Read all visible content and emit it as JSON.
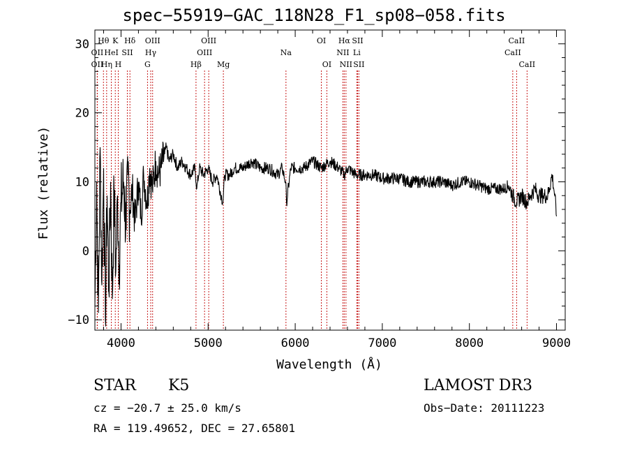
{
  "chart_data": {
    "type": "line",
    "title": "spec−55919−GAC_118N28_F1_sp08−058.fits",
    "xlabel": "Wavelength (Å)",
    "ylabel": "Flux (relative)",
    "xlim": [
      3700,
      9100
    ],
    "ylim": [
      -11.5,
      32
    ],
    "xticks": [
      4000,
      5000,
      6000,
      7000,
      8000,
      9000
    ],
    "xtick_labels": [
      "4000",
      "5000",
      "6000",
      "7000",
      "8000",
      "9000"
    ],
    "yticks": [
      -10,
      0,
      10,
      20,
      30
    ],
    "ytick_labels": [
      "−10",
      "0",
      "10",
      "20",
      "30"
    ],
    "grid": false,
    "series": [
      {
        "name": "spectrum",
        "x": [
          3700,
          3720,
          3740,
          3760,
          3780,
          3800,
          3820,
          3840,
          3860,
          3880,
          3900,
          3920,
          3940,
          3960,
          3980,
          4000,
          4030,
          4060,
          4080,
          4100,
          4130,
          4160,
          4200,
          4230,
          4260,
          4300,
          4330,
          4360,
          4400,
          4430,
          4460,
          4500,
          4520,
          4550,
          4600,
          4650,
          4700,
          4750,
          4800,
          4850,
          4870,
          4900,
          4950,
          5000,
          5050,
          5100,
          5150,
          5170,
          5190,
          5250,
          5300,
          5400,
          5500,
          5600,
          5700,
          5800,
          5850,
          5890,
          5900,
          5950,
          6000,
          6100,
          6200,
          6300,
          6400,
          6500,
          6563,
          6600,
          6700,
          6800,
          6900,
          7000,
          7100,
          7200,
          7300,
          7400,
          7500,
          7600,
          7700,
          7800,
          7900,
          8000,
          8100,
          8200,
          8300,
          8400,
          8450,
          8498,
          8542,
          8600,
          8662,
          8700,
          8750,
          8800,
          8850,
          8900,
          8950,
          8980,
          9000
        ],
        "y": [
          -8,
          10,
          -9,
          15,
          -5,
          12,
          -10,
          8,
          -6,
          10,
          -7,
          9,
          -3,
          8,
          -2,
          7,
          10,
          3,
          11,
          6,
          9,
          4,
          10,
          5,
          11,
          7,
          12,
          9,
          13,
          11,
          12,
          14,
          15,
          13,
          14,
          12,
          13,
          12,
          11,
          12,
          9,
          12,
          11,
          12,
          10,
          11,
          8,
          7,
          11,
          11,
          12,
          12,
          13,
          12,
          12,
          11,
          12,
          10,
          7,
          12,
          12,
          12,
          13,
          12,
          13,
          12,
          11,
          12,
          11,
          11,
          11,
          10.5,
          10.5,
          10.5,
          10,
          10,
          10,
          10,
          10,
          9.5,
          10,
          10,
          9.5,
          9,
          9,
          9,
          9.5,
          8,
          7,
          8,
          7,
          8,
          9,
          8,
          8,
          8,
          11,
          8,
          5
        ]
      }
    ],
    "line_markers": [
      {
        "label": "OII",
        "wavelength": 3727,
        "row": 2
      },
      {
        "label": "OII",
        "wavelength": 3727,
        "row": 3
      },
      {
        "label": "Hθ",
        "wavelength": 3798,
        "row": 1
      },
      {
        "label": "Hη",
        "wavelength": 3835,
        "row": 3
      },
      {
        "label": "HeI",
        "wavelength": 3889,
        "row": 2
      },
      {
        "label": "K",
        "wavelength": 3934,
        "row": 1
      },
      {
        "label": "H",
        "wavelength": 3968,
        "row": 3
      },
      {
        "label": "SII",
        "wavelength": 4072,
        "row": 2
      },
      {
        "label": "Hδ",
        "wavelength": 4102,
        "row": 1
      },
      {
        "label": "G",
        "wavelength": 4304,
        "row": 3
      },
      {
        "label": "Hγ",
        "wavelength": 4341,
        "row": 2
      },
      {
        "label": "OIII",
        "wavelength": 4363,
        "row": 1
      },
      {
        "label": "Hβ",
        "wavelength": 4861,
        "row": 3
      },
      {
        "label": "OIII",
        "wavelength": 4959,
        "row": 2
      },
      {
        "label": "OIII",
        "wavelength": 5007,
        "row": 1
      },
      {
        "label": "Mg",
        "wavelength": 5175,
        "row": 3
      },
      {
        "label": "Na",
        "wavelength": 5894,
        "row": 2
      },
      {
        "label": "OI",
        "wavelength": 6300,
        "row": 1
      },
      {
        "label": "OI",
        "wavelength": 6363,
        "row": 3
      },
      {
        "label": "NII",
        "wavelength": 6548,
        "row": 2
      },
      {
        "label": "Hα",
        "wavelength": 6563,
        "row": 1
      },
      {
        "label": "NII",
        "wavelength": 6583,
        "row": 3
      },
      {
        "label": "Li",
        "wavelength": 6707,
        "row": 2
      },
      {
        "label": "SII",
        "wavelength": 6716,
        "row": 1
      },
      {
        "label": "SII",
        "wavelength": 6731,
        "row": 3
      },
      {
        "label": "CaII",
        "wavelength": 8498,
        "row": 2
      },
      {
        "label": "CaII",
        "wavelength": 8542,
        "row": 1
      },
      {
        "label": "CaII",
        "wavelength": 8662,
        "row": 3
      }
    ]
  },
  "info": {
    "object_class": "STAR",
    "subclass": "K5",
    "survey": "LAMOST DR3",
    "redshift": "cz = −20.7 ± 25.0 km/s",
    "obs_date": "Obs−Date: 20111223",
    "coords": "RA = 119.49652, DEC =  27.65801"
  }
}
